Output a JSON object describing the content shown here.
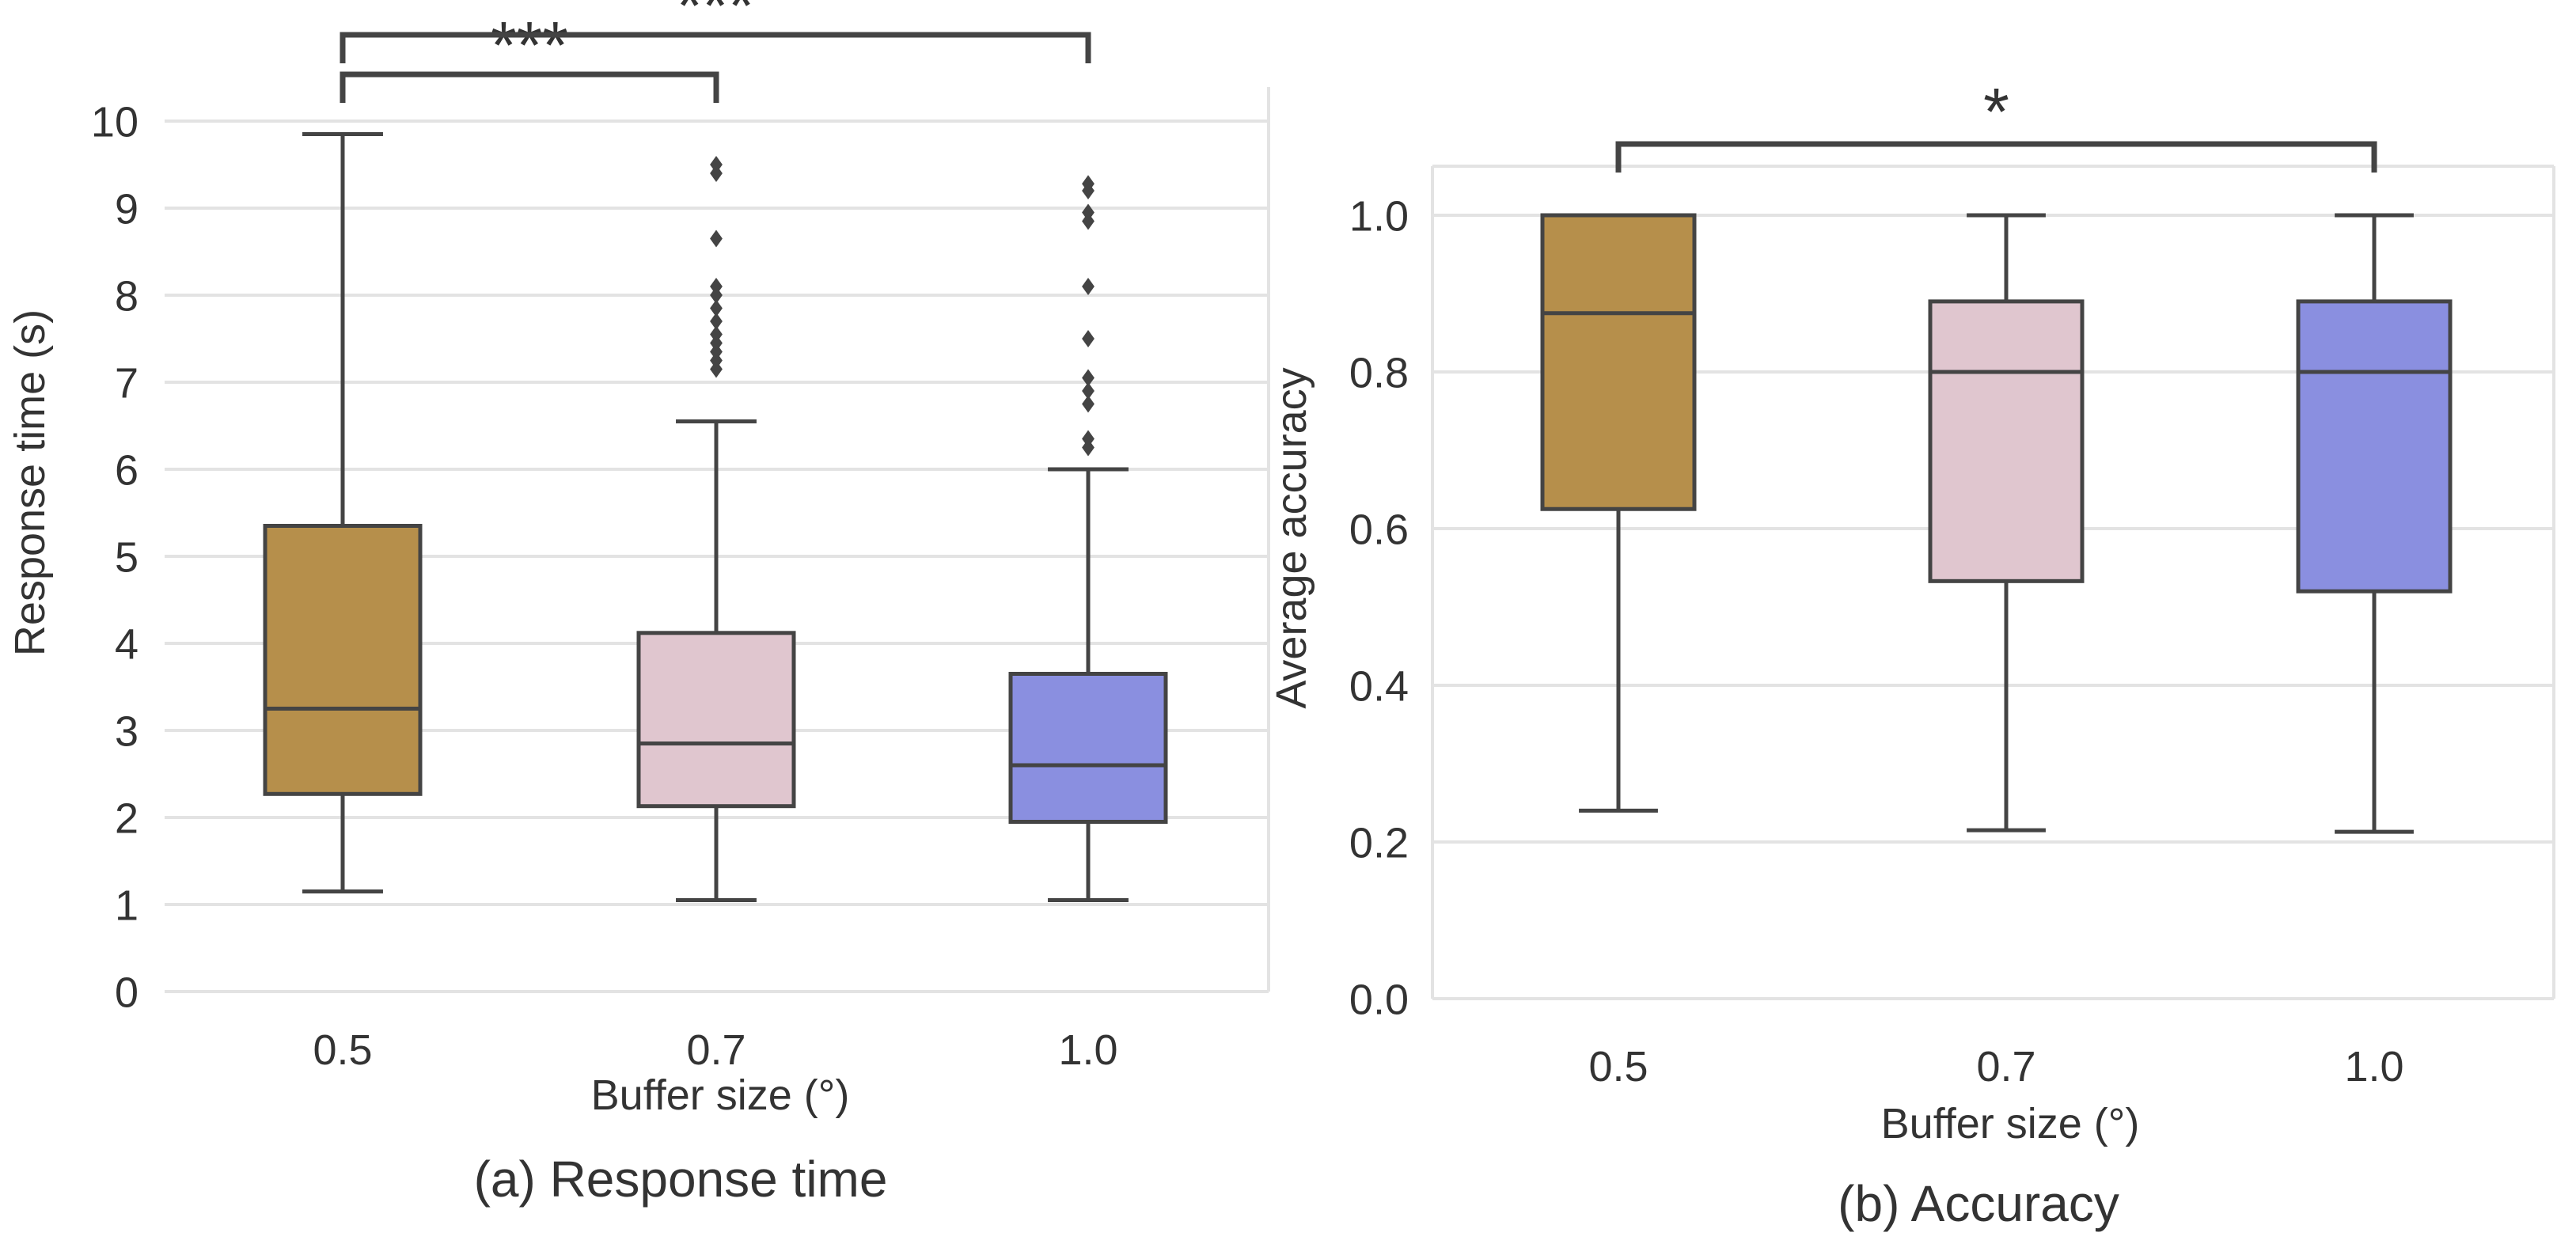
{
  "colors": {
    "c05": "#b68f4b",
    "c07": "#e0c6cf",
    "c10": "#8a8fe0",
    "line": "#444444",
    "grid": "#e3e3e3",
    "spine": "#e3e3e3",
    "text": "#333333"
  },
  "chart_data": [
    {
      "type": "box",
      "caption": "(a) Response time",
      "xlabel": "Buffer size (°)",
      "ylabel": "Response time (s)",
      "ylim": [
        0,
        10
      ],
      "yticks": [
        "0",
        "1",
        "2",
        "3",
        "4",
        "5",
        "6",
        "7",
        "8",
        "9",
        "10"
      ],
      "categories": [
        "0.5",
        "0.7",
        "1.0"
      ],
      "boxes": [
        {
          "category": "0.5",
          "color_key": "c05",
          "whisker_low": 1.15,
          "q1": 2.27,
          "median": 3.25,
          "q3": 5.35,
          "whisker_high": 9.85,
          "outliers": []
        },
        {
          "category": "0.7",
          "color_key": "c07",
          "whisker_low": 1.05,
          "q1": 2.13,
          "median": 2.85,
          "q3": 4.12,
          "whisker_high": 6.55,
          "outliers": [
            7.15,
            7.25,
            7.35,
            7.45,
            7.55,
            7.7,
            7.85,
            8.0,
            8.1,
            8.65,
            9.4,
            9.5
          ]
        },
        {
          "category": "1.0",
          "color_key": "c10",
          "whisker_low": 1.05,
          "q1": 1.95,
          "median": 2.6,
          "q3": 3.65,
          "whisker_high": 6.0,
          "outliers": [
            6.25,
            6.35,
            6.75,
            6.9,
            7.05,
            7.5,
            8.1,
            8.85,
            8.95,
            9.2,
            9.28
          ]
        }
      ],
      "significance": [
        {
          "from": "0.5",
          "to": "0.7",
          "label": "***"
        },
        {
          "from": "0.5",
          "to": "1.0",
          "label": "***"
        }
      ]
    },
    {
      "type": "box",
      "caption": "(b) Accuracy",
      "xlabel": "Buffer size (°)",
      "ylabel": "Average accuracy",
      "ylim": [
        0,
        1.0
      ],
      "yticks": [
        "0.0",
        "0.2",
        "0.4",
        "0.6",
        "0.8",
        "1.0"
      ],
      "categories": [
        "0.5",
        "0.7",
        "1.0"
      ],
      "boxes": [
        {
          "category": "0.5",
          "color_key": "c05",
          "whisker_low": 0.24,
          "q1": 0.625,
          "median": 0.875,
          "q3": 1.0,
          "whisker_high": 1.0,
          "outliers": []
        },
        {
          "category": "0.7",
          "color_key": "c07",
          "whisker_low": 0.215,
          "q1": 0.533,
          "median": 0.8,
          "q3": 0.89,
          "whisker_high": 1.0,
          "outliers": []
        },
        {
          "category": "1.0",
          "color_key": "c10",
          "whisker_low": 0.213,
          "q1": 0.52,
          "median": 0.8,
          "q3": 0.89,
          "whisker_high": 1.0,
          "outliers": []
        }
      ],
      "significance": [
        {
          "from": "0.5",
          "to": "1.0",
          "label": "*"
        }
      ]
    }
  ]
}
